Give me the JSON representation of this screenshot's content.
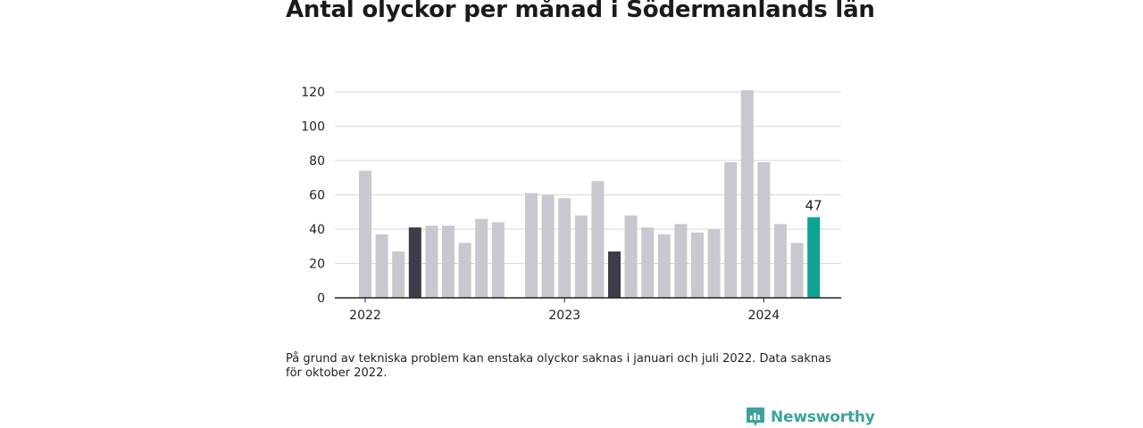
{
  "title": "Antal olyckor per månad i Södermanlands län",
  "footnote": "På grund av tekniska problem kan enstaka olyckor saknas i januari och juli 2022. Data saknas för oktober 2022.",
  "brand": {
    "name": "Newsworthy",
    "icon": "newsworthy-logo-icon",
    "color": "#3aa39a"
  },
  "colors": {
    "default": "#c8c8d0",
    "highlight": "#3d3d4a",
    "latest": "#0fa396",
    "grid": "#d9d9d9",
    "axis": "#222222"
  },
  "chart_data": {
    "type": "bar",
    "title": "Antal olyckor per månad i Södermanlands län",
    "xlabel": "",
    "ylabel": "",
    "ylim": [
      0,
      120
    ],
    "yticks": [
      0,
      20,
      40,
      60,
      80,
      100,
      120
    ],
    "grid": true,
    "xtick_labels": [
      {
        "label": "2022",
        "month": "2022-01"
      },
      {
        "label": "2023",
        "month": "2023-01"
      },
      {
        "label": "2024",
        "month": "2024-01"
      }
    ],
    "months": [
      "2022-01",
      "2022-02",
      "2022-03",
      "2022-04",
      "2022-05",
      "2022-06",
      "2022-07",
      "2022-08",
      "2022-09",
      "2022-10",
      "2022-11",
      "2022-12",
      "2023-01",
      "2023-02",
      "2023-03",
      "2023-04",
      "2023-05",
      "2023-06",
      "2023-07",
      "2023-08",
      "2023-09",
      "2023-10",
      "2023-11",
      "2023-12",
      "2024-01",
      "2024-02",
      "2024-03",
      "2024-04"
    ],
    "values": [
      74,
      37,
      27,
      41,
      42,
      42,
      32,
      46,
      44,
      null,
      61,
      60,
      58,
      48,
      68,
      27,
      48,
      41,
      37,
      43,
      38,
      40,
      79,
      121,
      79,
      43,
      32,
      47
    ],
    "highlight_months": [
      "2022-04",
      "2023-04"
    ],
    "latest_month": "2024-04",
    "data_labels": [
      {
        "month": "2024-04",
        "label": "47"
      }
    ]
  }
}
